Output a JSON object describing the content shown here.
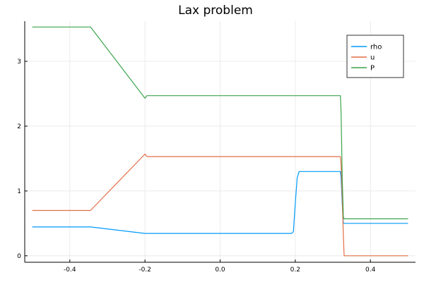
{
  "chart_data": {
    "type": "line",
    "title": "Lax problem",
    "xlabel": "",
    "ylabel": "",
    "xlim": [
      -0.52,
      0.52
    ],
    "ylim": [
      -0.1,
      3.62
    ],
    "x_ticks": [
      -0.4,
      -0.2,
      0.0,
      0.2,
      0.4
    ],
    "x_tick_labels": [
      "-0.4",
      "-0.2",
      "0.0",
      "0.2",
      "0.4"
    ],
    "y_ticks": [
      0,
      1,
      2,
      3
    ],
    "y_tick_labels": [
      "0",
      "1",
      "2",
      "3"
    ],
    "grid": true,
    "legend_position": "top-right",
    "series": [
      {
        "name": "rho",
        "color": "#009af9",
        "x": [
          -0.5,
          -0.345,
          -0.2,
          0.19,
          0.195,
          0.2,
          0.205,
          0.21,
          0.32,
          0.322,
          0.325,
          0.328,
          0.5
        ],
        "y": [
          0.445,
          0.445,
          0.345,
          0.345,
          0.37,
          0.8,
          1.2,
          1.3,
          1.3,
          1.2,
          0.8,
          0.5,
          0.5
        ]
      },
      {
        "name": "u",
        "color": "#e26f46",
        "x": [
          -0.5,
          -0.345,
          -0.2,
          -0.195,
          0.32,
          0.322,
          0.325,
          0.328,
          0.33,
          0.5
        ],
        "y": [
          0.7,
          0.7,
          1.57,
          1.53,
          1.53,
          1.4,
          0.9,
          0.3,
          0.0,
          0.0
        ]
      },
      {
        "name": "P",
        "color": "#3da44d",
        "x": [
          -0.5,
          -0.345,
          -0.2,
          -0.195,
          0.32,
          0.322,
          0.325,
          0.328,
          0.33,
          0.5
        ],
        "y": [
          3.53,
          3.53,
          2.43,
          2.47,
          2.47,
          2.2,
          1.2,
          0.6,
          0.57,
          0.57
        ]
      }
    ]
  }
}
